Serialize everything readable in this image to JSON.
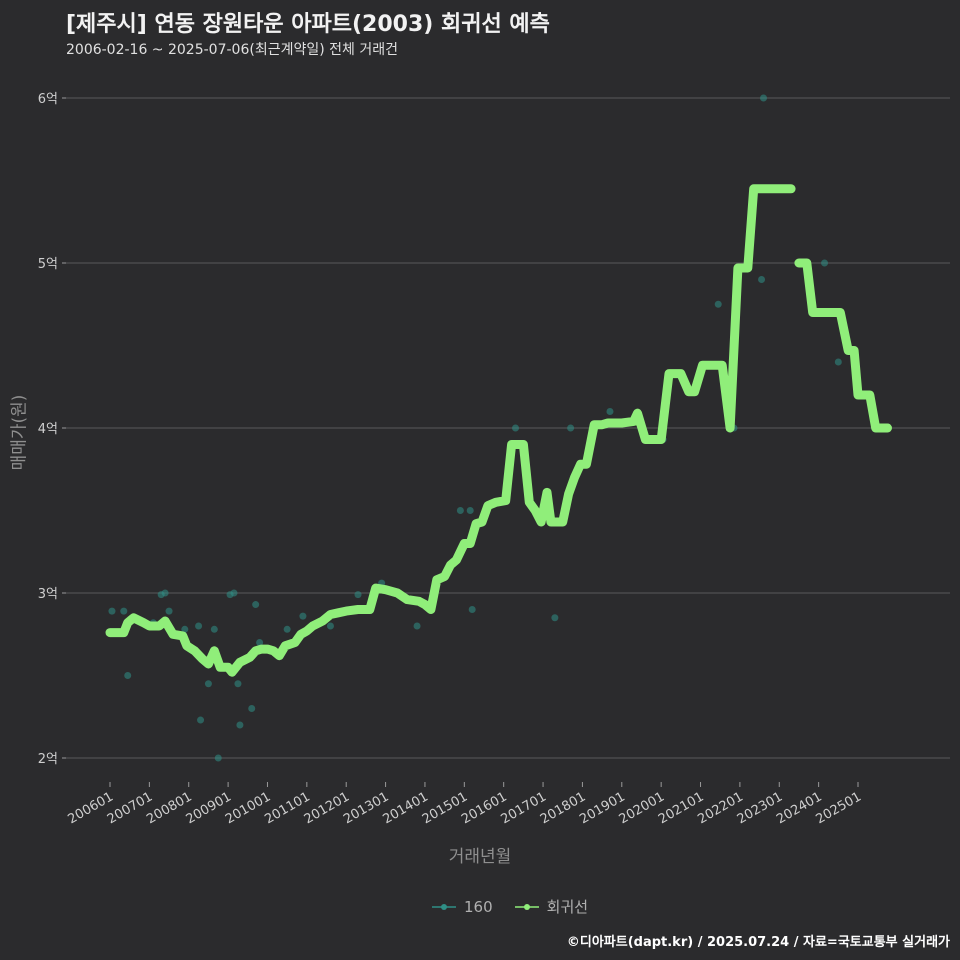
{
  "title": "[제주시] 연동 장원타운 아파트(2003) 회귀선 예측",
  "subtitle": "2006-02-16 ~ 2025-07-06(최근계약일) 전체 거래건",
  "footer": "©디아파트(dapt.kr) / 2025.07.24 / 자료=국토교통부 실거래가",
  "colors": {
    "background": "#2b2b2d",
    "grid": "#5a5a5a",
    "trend": "#90ee7a",
    "points": "#2f8f86"
  },
  "chart_data": {
    "type": "scatter",
    "xlabel": "거래년월",
    "ylabel": "매매가(원)",
    "xlim": [
      2006.0,
      2026.5
    ],
    "ylim": [
      1.85,
      6.2
    ],
    "y_ticks": [
      {
        "value": 2,
        "label": "2억"
      },
      {
        "value": 3,
        "label": "3억"
      },
      {
        "value": 4,
        "label": "4억"
      },
      {
        "value": 5,
        "label": "5억"
      },
      {
        "value": 6,
        "label": "6억"
      }
    ],
    "x_ticks": [
      {
        "value": 2006.0,
        "label": "200601"
      },
      {
        "value": 2007.0,
        "label": "200701"
      },
      {
        "value": 2008.0,
        "label": "200801"
      },
      {
        "value": 2009.0,
        "label": "200901"
      },
      {
        "value": 2010.0,
        "label": "201001"
      },
      {
        "value": 2011.0,
        "label": "201101"
      },
      {
        "value": 2012.0,
        "label": "201201"
      },
      {
        "value": 2013.0,
        "label": "201301"
      },
      {
        "value": 2014.0,
        "label": "201401"
      },
      {
        "value": 2015.0,
        "label": "201501"
      },
      {
        "value": 2016.0,
        "label": "201601"
      },
      {
        "value": 2017.0,
        "label": "201701"
      },
      {
        "value": 2018.0,
        "label": "201801"
      },
      {
        "value": 2019.0,
        "label": "201901"
      },
      {
        "value": 2020.0,
        "label": "202001"
      },
      {
        "value": 2021.0,
        "label": "202101"
      },
      {
        "value": 2022.0,
        "label": "202201"
      },
      {
        "value": 2023.0,
        "label": "202301"
      },
      {
        "value": 2024.0,
        "label": "202401"
      },
      {
        "value": 2025.0,
        "label": "202501"
      }
    ],
    "legend": [
      {
        "name": "160",
        "kind": "points"
      },
      {
        "name": "회귀선",
        "kind": "line"
      }
    ],
    "series": [
      {
        "name": "160",
        "points": [
          [
            2006.05,
            2.89
          ],
          [
            2006.35,
            2.89
          ],
          [
            2006.45,
            2.5
          ],
          [
            2007.1,
            2.82
          ],
          [
            2007.3,
            2.99
          ],
          [
            2007.4,
            3.0
          ],
          [
            2007.5,
            2.89
          ],
          [
            2007.6,
            2.75
          ],
          [
            2007.9,
            2.78
          ],
          [
            2008.25,
            2.8
          ],
          [
            2008.3,
            2.23
          ],
          [
            2008.5,
            2.45
          ],
          [
            2008.65,
            2.78
          ],
          [
            2008.75,
            2.0
          ],
          [
            2009.05,
            2.99
          ],
          [
            2009.15,
            3.0
          ],
          [
            2009.25,
            2.45
          ],
          [
            2009.3,
            2.2
          ],
          [
            2009.6,
            2.3
          ],
          [
            2009.7,
            2.93
          ],
          [
            2009.8,
            2.7
          ],
          [
            2010.5,
            2.78
          ],
          [
            2010.9,
            2.86
          ],
          [
            2011.6,
            2.8
          ],
          [
            2012.3,
            2.99
          ],
          [
            2012.9,
            3.06
          ],
          [
            2013.8,
            2.8
          ],
          [
            2014.9,
            3.5
          ],
          [
            2015.15,
            3.5
          ],
          [
            2015.2,
            2.9
          ],
          [
            2016.3,
            4.0
          ],
          [
            2017.3,
            2.85
          ],
          [
            2017.7,
            4.0
          ],
          [
            2018.7,
            4.1
          ],
          [
            2020.05,
            3.93
          ],
          [
            2021.45,
            4.75
          ],
          [
            2021.85,
            4.0
          ],
          [
            2022.55,
            4.9
          ],
          [
            2022.6,
            6.0
          ],
          [
            2024.15,
            5.0
          ],
          [
            2024.5,
            4.4
          ]
        ]
      },
      {
        "name": "회귀선",
        "segments": [
          [
            [
              2006.0,
              2.76
            ],
            [
              2006.35,
              2.76
            ],
            [
              2006.45,
              2.82
            ],
            [
              2006.6,
              2.85
            ],
            [
              2006.85,
              2.82
            ],
            [
              2007.0,
              2.8
            ],
            [
              2007.25,
              2.8
            ],
            [
              2007.4,
              2.83
            ],
            [
              2007.6,
              2.75
            ],
            [
              2007.85,
              2.74
            ],
            [
              2007.95,
              2.68
            ],
            [
              2008.15,
              2.65
            ],
            [
              2008.35,
              2.6
            ],
            [
              2008.5,
              2.57
            ],
            [
              2008.65,
              2.65
            ],
            [
              2008.8,
              2.55
            ],
            [
              2009.0,
              2.55
            ],
            [
              2009.1,
              2.52
            ],
            [
              2009.3,
              2.58
            ],
            [
              2009.55,
              2.61
            ],
            [
              2009.7,
              2.65
            ],
            [
              2009.85,
              2.66
            ],
            [
              2010.0,
              2.66
            ],
            [
              2010.15,
              2.65
            ],
            [
              2010.3,
              2.62
            ],
            [
              2010.45,
              2.68
            ],
            [
              2010.7,
              2.7
            ],
            [
              2010.85,
              2.75
            ],
            [
              2011.0,
              2.77
            ],
            [
              2011.15,
              2.8
            ],
            [
              2011.4,
              2.83
            ],
            [
              2011.6,
              2.87
            ],
            [
              2011.8,
              2.88
            ],
            [
              2012.0,
              2.89
            ],
            [
              2012.3,
              2.9
            ],
            [
              2012.6,
              2.9
            ],
            [
              2012.75,
              3.03
            ],
            [
              2013.0,
              3.02
            ],
            [
              2013.3,
              3.0
            ],
            [
              2013.55,
              2.96
            ],
            [
              2013.85,
              2.95
            ],
            [
              2014.0,
              2.93
            ],
            [
              2014.15,
              2.9
            ],
            [
              2014.3,
              3.08
            ],
            [
              2014.5,
              3.1
            ],
            [
              2014.65,
              3.17
            ],
            [
              2014.8,
              3.2
            ],
            [
              2015.0,
              3.3
            ],
            [
              2015.15,
              3.3
            ],
            [
              2015.3,
              3.42
            ],
            [
              2015.45,
              3.43
            ],
            [
              2015.6,
              3.53
            ],
            [
              2015.8,
              3.55
            ],
            [
              2016.05,
              3.56
            ],
            [
              2016.2,
              3.9
            ],
            [
              2016.5,
              3.9
            ],
            [
              2016.65,
              3.55
            ],
            [
              2016.8,
              3.5
            ],
            [
              2016.95,
              3.43
            ],
            [
              2017.1,
              3.61
            ],
            [
              2017.2,
              3.43
            ],
            [
              2017.5,
              3.43
            ],
            [
              2017.65,
              3.6
            ],
            [
              2017.8,
              3.7
            ],
            [
              2017.95,
              3.78
            ],
            [
              2018.1,
              3.78
            ],
            [
              2018.3,
              4.02
            ],
            [
              2018.5,
              4.02
            ],
            [
              2018.65,
              4.03
            ],
            [
              2019.0,
              4.03
            ],
            [
              2019.3,
              4.04
            ],
            [
              2019.4,
              4.09
            ],
            [
              2019.6,
              3.93
            ],
            [
              2019.9,
              3.93
            ],
            [
              2020.0,
              3.93
            ],
            [
              2020.2,
              4.33
            ],
            [
              2020.5,
              4.33
            ],
            [
              2020.7,
              4.22
            ],
            [
              2020.85,
              4.22
            ],
            [
              2021.05,
              4.38
            ],
            [
              2021.35,
              4.38
            ],
            [
              2021.55,
              4.38
            ],
            [
              2021.75,
              4.0
            ],
            [
              2021.95,
              4.97
            ],
            [
              2022.2,
              4.97
            ],
            [
              2022.35,
              5.45
            ],
            [
              2022.7,
              5.45
            ],
            [
              2023.0,
              5.45
            ],
            [
              2023.3,
              5.45
            ]
          ],
          [
            [
              2023.5,
              5.0
            ],
            [
              2023.7,
              5.0
            ],
            [
              2023.85,
              4.7
            ],
            [
              2024.2,
              4.7
            ],
            [
              2024.55,
              4.7
            ],
            [
              2024.75,
              4.47
            ],
            [
              2024.9,
              4.47
            ],
            [
              2025.0,
              4.2
            ],
            [
              2025.3,
              4.2
            ],
            [
              2025.45,
              4.0
            ],
            [
              2025.75,
              4.0
            ]
          ]
        ]
      }
    ]
  }
}
